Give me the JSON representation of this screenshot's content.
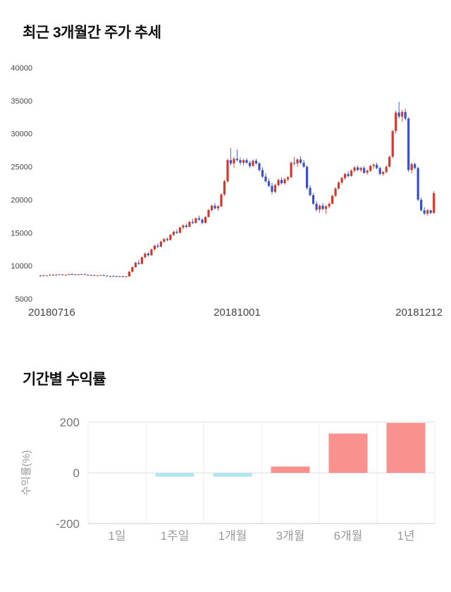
{
  "chart_data": [
    {
      "type": "candlestick",
      "title": "최근 3개월간 주가 추세",
      "x_tick_labels": [
        "20180716",
        "20181001",
        "20181212"
      ],
      "y_ticks": [
        40000,
        35000,
        30000,
        25000,
        20000,
        15000,
        10000,
        5000
      ],
      "ylim": [
        5000,
        40000
      ],
      "grid": false,
      "up_color": "#d03a2e",
      "down_color": "#3a50c8",
      "candles_ohlc": [
        [
          8450,
          8600,
          8350,
          8550
        ],
        [
          8550,
          8650,
          8450,
          8500
        ],
        [
          8500,
          8600,
          8400,
          8550
        ],
        [
          8550,
          8700,
          8500,
          8650
        ],
        [
          8650,
          8750,
          8550,
          8600
        ],
        [
          8600,
          8700,
          8500,
          8650
        ],
        [
          8650,
          8750,
          8600,
          8700
        ],
        [
          8700,
          8750,
          8550,
          8600
        ],
        [
          8600,
          8700,
          8500,
          8650
        ],
        [
          8650,
          8800,
          8600,
          8750
        ],
        [
          8750,
          8850,
          8650,
          8700
        ],
        [
          8700,
          8750,
          8600,
          8650
        ],
        [
          8650,
          8750,
          8550,
          8700
        ],
        [
          8700,
          8800,
          8650,
          8750
        ],
        [
          8750,
          8800,
          8600,
          8650
        ],
        [
          8650,
          8700,
          8500,
          8550
        ],
        [
          8550,
          8650,
          8450,
          8600
        ],
        [
          8600,
          8650,
          8450,
          8500
        ],
        [
          8500,
          8600,
          8400,
          8550
        ],
        [
          8550,
          8650,
          8500,
          8600
        ],
        [
          8600,
          8700,
          8450,
          8500
        ],
        [
          8500,
          8550,
          8350,
          8400
        ],
        [
          8400,
          8500,
          8300,
          8450
        ],
        [
          8450,
          8550,
          8350,
          8400
        ],
        [
          8400,
          8500,
          8300,
          8350
        ],
        [
          8350,
          8450,
          8250,
          8400
        ],
        [
          8400,
          8500,
          8300,
          8350
        ],
        [
          8350,
          8450,
          8250,
          8400
        ],
        [
          8400,
          9200,
          8350,
          9100
        ],
        [
          9100,
          9900,
          9000,
          9800
        ],
        [
          9800,
          10600,
          9700,
          10450
        ],
        [
          10450,
          10900,
          10100,
          10300
        ],
        [
          10300,
          11400,
          10250,
          11300
        ],
        [
          11300,
          12000,
          11100,
          11850
        ],
        [
          11850,
          12100,
          11400,
          11600
        ],
        [
          11600,
          12600,
          11500,
          12500
        ],
        [
          12500,
          13200,
          12300,
          13050
        ],
        [
          13050,
          13400,
          12700,
          12900
        ],
        [
          12900,
          13800,
          12800,
          13650
        ],
        [
          13650,
          14200,
          13500,
          14050
        ],
        [
          14050,
          14300,
          13700,
          13900
        ],
        [
          13900,
          14800,
          13850,
          14700
        ],
        [
          14700,
          15300,
          14500,
          15150
        ],
        [
          15150,
          15500,
          14800,
          15000
        ],
        [
          15000,
          15900,
          14900,
          15800
        ],
        [
          15800,
          16300,
          15500,
          16100
        ],
        [
          16100,
          16400,
          15700,
          15900
        ],
        [
          15900,
          16800,
          15800,
          16650
        ],
        [
          16650,
          17100,
          16300,
          16500
        ],
        [
          16500,
          17300,
          16400,
          17200
        ],
        [
          17200,
          17600,
          16800,
          17000
        ],
        [
          17000,
          17200,
          16300,
          16500
        ],
        [
          16500,
          17500,
          16400,
          17400
        ],
        [
          17400,
          18600,
          17300,
          18450
        ],
        [
          18450,
          19300,
          18200,
          19100
        ],
        [
          19100,
          19500,
          18500,
          18700
        ],
        [
          18700,
          19200,
          18300,
          19000
        ],
        [
          19000,
          21000,
          18900,
          20800
        ],
        [
          20800,
          23000,
          20600,
          22800
        ],
        [
          22800,
          26200,
          22600,
          26000
        ],
        [
          26000,
          27800,
          25200,
          25500
        ],
        [
          25500,
          26500,
          24800,
          26200
        ],
        [
          26200,
          27600,
          25800,
          26000
        ],
        [
          26000,
          26400,
          25300,
          25600
        ],
        [
          25600,
          26200,
          25200,
          26000
        ],
        [
          26000,
          26300,
          25400,
          25600
        ],
        [
          25600,
          25900,
          24800,
          25100
        ],
        [
          25100,
          26100,
          25000,
          25900
        ],
        [
          25900,
          26200,
          25300,
          25500
        ],
        [
          25500,
          25700,
          24300,
          24500
        ],
        [
          24500,
          24900,
          23300,
          23500
        ],
        [
          23500,
          24000,
          22600,
          22800
        ],
        [
          22800,
          23200,
          21900,
          22100
        ],
        [
          22100,
          22600,
          20800,
          21200
        ],
        [
          21200,
          22400,
          21000,
          22200
        ],
        [
          22200,
          23200,
          22000,
          23000
        ],
        [
          23000,
          23400,
          22300,
          22500
        ],
        [
          22500,
          23300,
          22300,
          23100
        ],
        [
          23100,
          23600,
          22800,
          23400
        ],
        [
          23400,
          25800,
          23300,
          25600
        ],
        [
          25600,
          26500,
          25200,
          25500
        ],
        [
          25500,
          26300,
          25000,
          26100
        ],
        [
          26100,
          26600,
          25400,
          25600
        ],
        [
          25600,
          26000,
          24800,
          25000
        ],
        [
          25000,
          25200,
          21500,
          21800
        ],
        [
          21800,
          22200,
          20500,
          20700
        ],
        [
          20700,
          21000,
          19200,
          19400
        ],
        [
          19400,
          19800,
          18200,
          18500
        ],
        [
          18500,
          19300,
          18000,
          19100
        ],
        [
          19100,
          19500,
          18400,
          18600
        ],
        [
          18600,
          19200,
          17900,
          19000
        ],
        [
          19000,
          19600,
          18700,
          19400
        ],
        [
          19400,
          20800,
          19300,
          20600
        ],
        [
          20600,
          21900,
          20400,
          21700
        ],
        [
          21700,
          22800,
          21500,
          22600
        ],
        [
          22600,
          23500,
          22300,
          23300
        ],
        [
          23300,
          24100,
          23000,
          23900
        ],
        [
          23900,
          24300,
          23400,
          23600
        ],
        [
          23600,
          24600,
          23500,
          24400
        ],
        [
          24400,
          25100,
          24100,
          24900
        ],
        [
          24900,
          25200,
          24300,
          24500
        ],
        [
          24500,
          25000,
          24200,
          24800
        ],
        [
          24800,
          25100,
          23900,
          24100
        ],
        [
          24100,
          24600,
          23800,
          24400
        ],
        [
          24400,
          25300,
          24200,
          25100
        ],
        [
          25100,
          25500,
          24700,
          25300
        ],
        [
          25300,
          25600,
          24600,
          24800
        ],
        [
          24800,
          25000,
          23700,
          23900
        ],
        [
          23900,
          24400,
          23600,
          24200
        ],
        [
          24200,
          25200,
          24000,
          25000
        ],
        [
          25000,
          26700,
          24900,
          26500
        ],
        [
          26500,
          30600,
          26300,
          30400
        ],
        [
          30400,
          33500,
          30000,
          33200
        ],
        [
          33200,
          34800,
          32300,
          32600
        ],
        [
          32600,
          33600,
          31800,
          33300
        ],
        [
          33300,
          33800,
          32000,
          32300
        ],
        [
          32300,
          32500,
          24200,
          24500
        ],
        [
          24500,
          25600,
          24000,
          25400
        ],
        [
          25400,
          25600,
          24600,
          24800
        ],
        [
          24800,
          25000,
          19800,
          20000
        ],
        [
          20000,
          20300,
          18200,
          18400
        ],
        [
          18400,
          18900,
          17700,
          17900
        ],
        [
          17900,
          18600,
          17600,
          18400
        ],
        [
          18400,
          18500,
          17800,
          18000
        ],
        [
          18000,
          21300,
          17900,
          21000
        ]
      ]
    },
    {
      "type": "bar",
      "title": "기간별 수익률",
      "ylabel": "수익률(%)",
      "categories": [
        "1일",
        "1주일",
        "1개월",
        "3개월",
        "6개월",
        "1년"
      ],
      "values": [
        0,
        -15,
        -15,
        25,
        155,
        197
      ],
      "y_ticks": [
        200,
        0,
        -200
      ],
      "ylim": [
        -200,
        200
      ],
      "grid": true,
      "legend": "none",
      "positive_color": "#f9918e",
      "negative_color": "#b2e6ee"
    }
  ]
}
